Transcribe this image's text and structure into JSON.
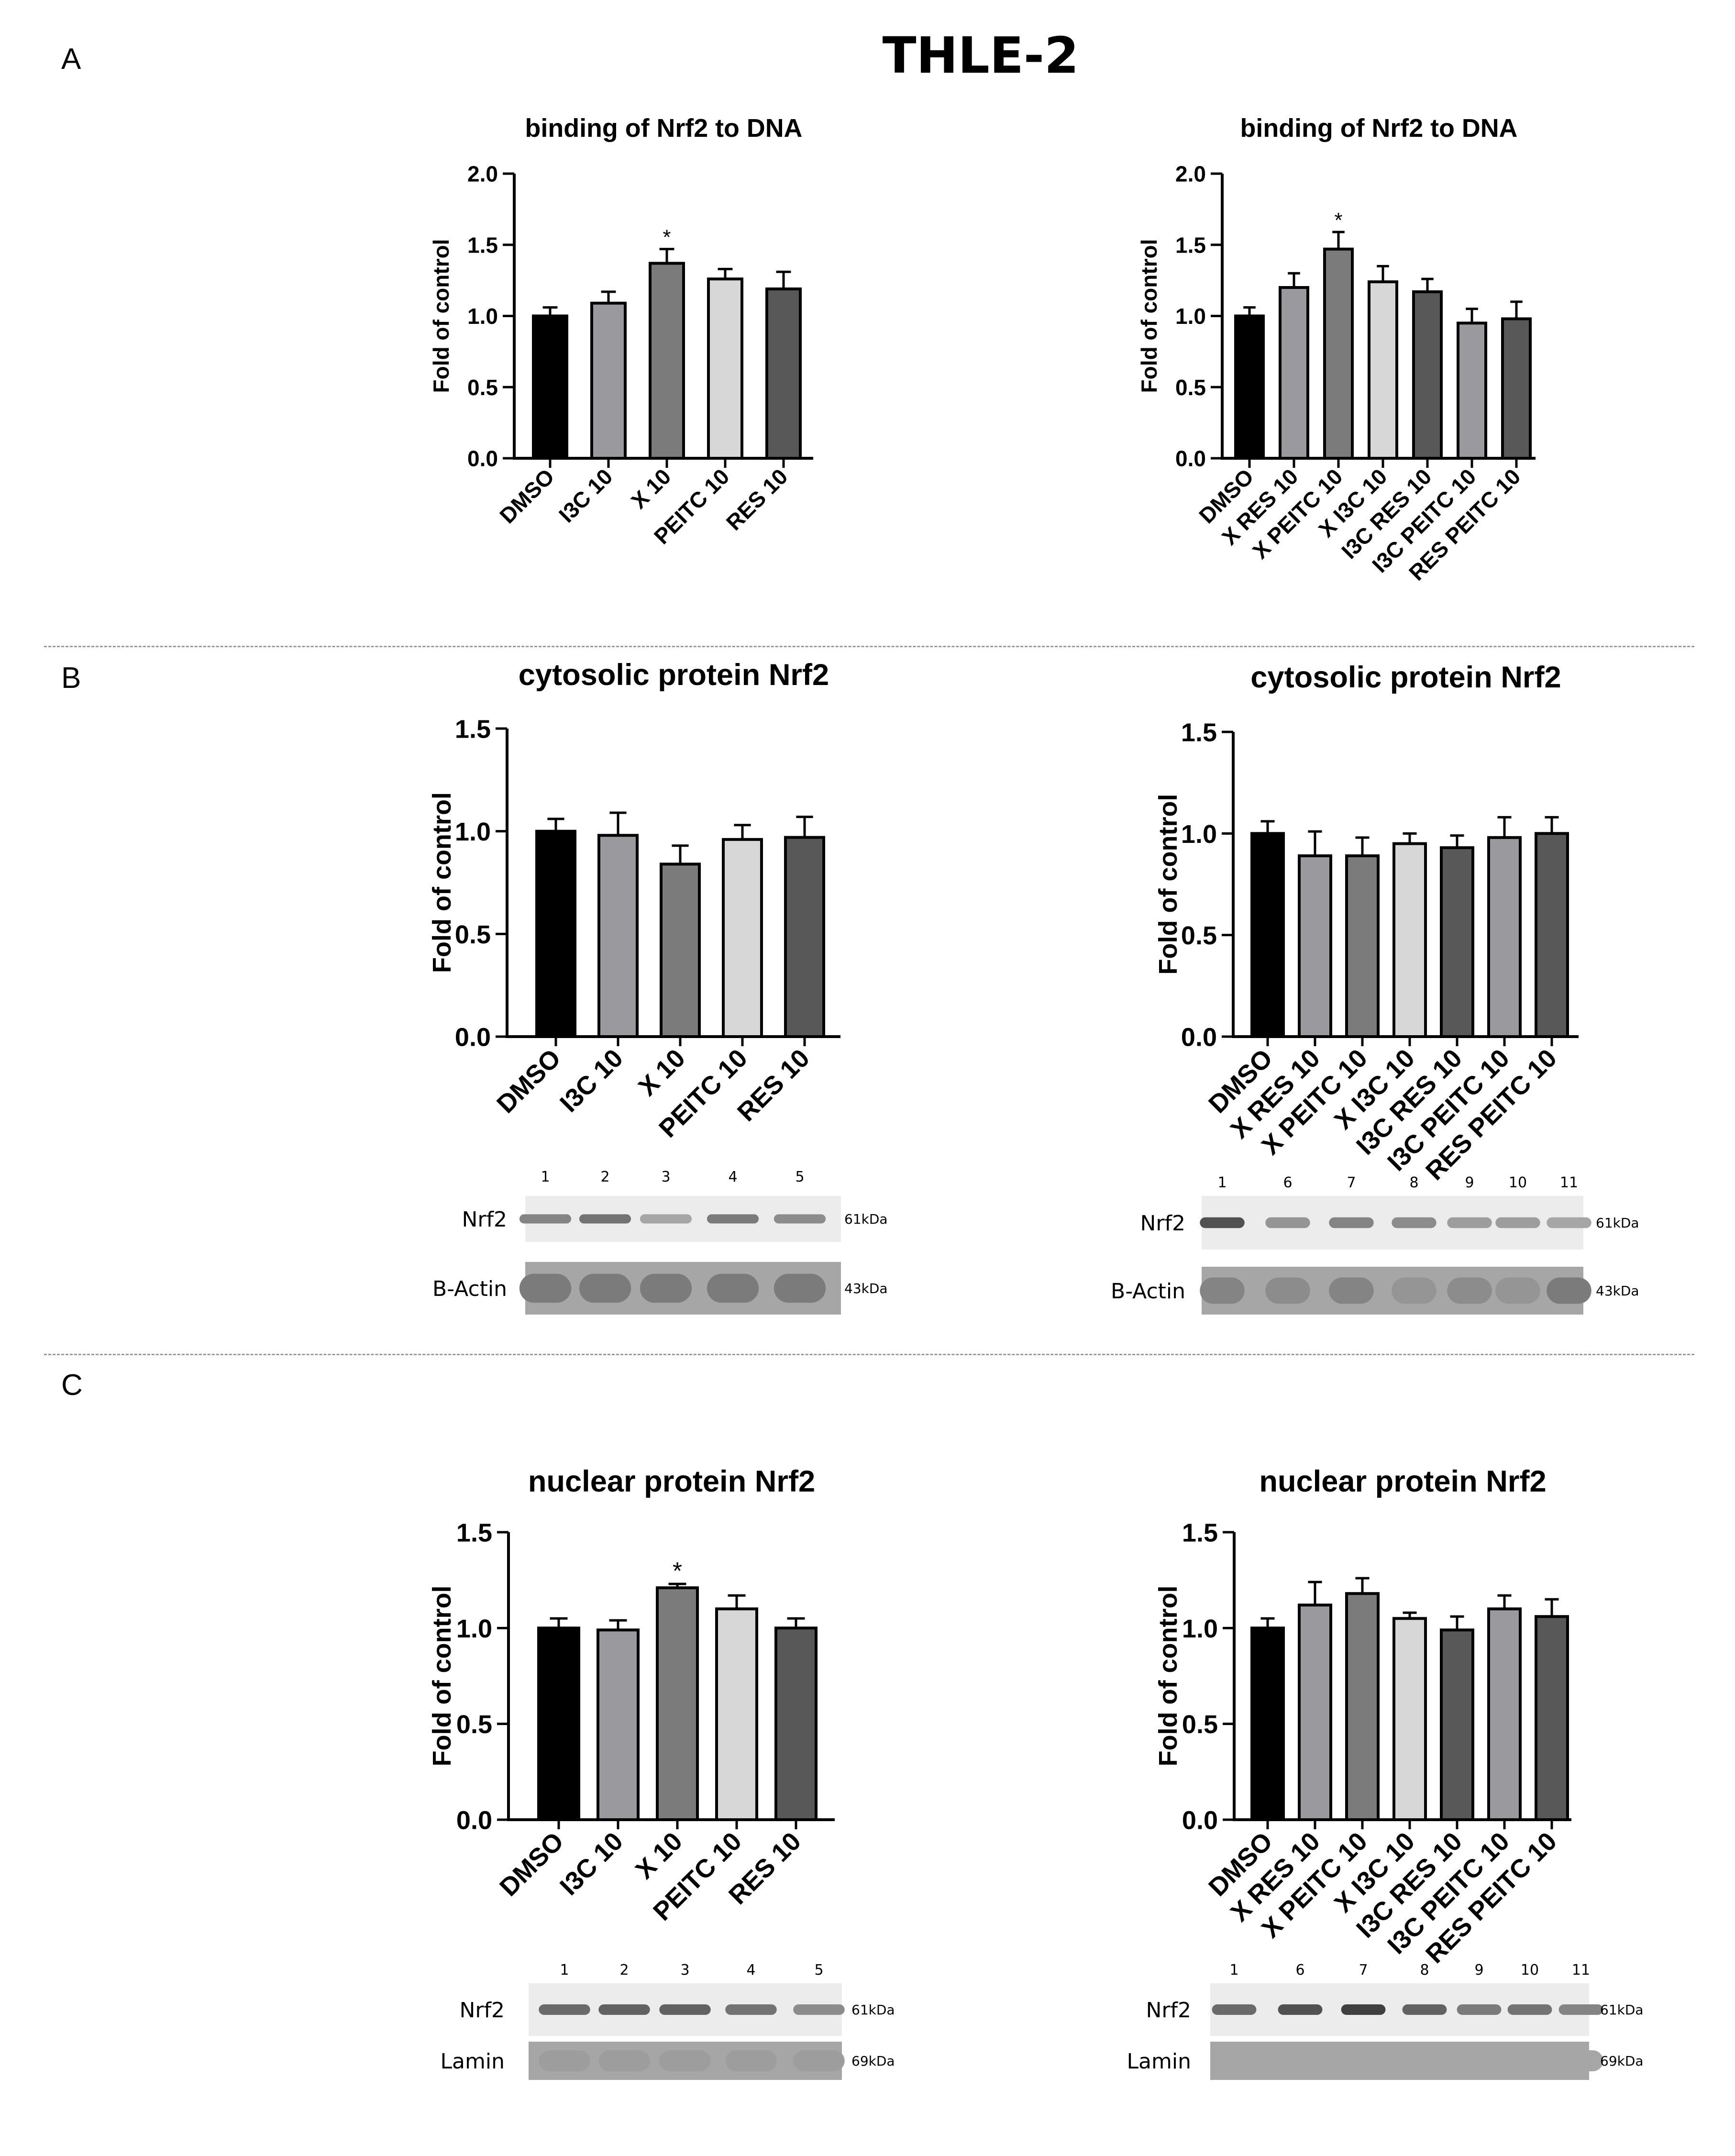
{
  "figure": {
    "title": "THLE-2",
    "panels": [
      "A",
      "B",
      "C"
    ]
  },
  "colors": {
    "DMSO": "#000000",
    "I3C 10": "#9a9a9e",
    "X 10": "#7b7b7b",
    "PEITC 10": "#d7d7d7",
    "RES 10": "#585858",
    "X RES 10": "#9a9a9e",
    "X PEITC 10": "#7b7b7b",
    "X I3C 10": "#d7d7d7",
    "I3C RES 10": "#585858",
    "I3C PEITC 10": "#9a9a9e",
    "RES PEITC 10": "#585858"
  },
  "chart_data": [
    {
      "id": "A-left",
      "type": "bar",
      "title": "binding of Nrf2 to DNA",
      "xlabel": "",
      "ylabel": "Fold of control",
      "ylim": [
        0,
        2.0
      ],
      "yticks": [
        "0.0",
        "0.5",
        "1.0",
        "1.5",
        "2.0"
      ],
      "grid": false,
      "categories": [
        "DMSO",
        "I3C 10",
        "X 10",
        "PEITC 10",
        "RES 10"
      ],
      "values": [
        1.0,
        1.09,
        1.37,
        1.26,
        1.19
      ],
      "errors": [
        0.06,
        0.08,
        0.1,
        0.07,
        0.12
      ],
      "annotations": [
        "",
        "",
        "*",
        "",
        ""
      ]
    },
    {
      "id": "A-right",
      "type": "bar",
      "title": "binding of Nrf2 to DNA",
      "xlabel": "",
      "ylabel": "Fold of control",
      "ylim": [
        0,
        2.0
      ],
      "yticks": [
        "0.0",
        "0.5",
        "1.0",
        "1.5",
        "2.0"
      ],
      "grid": false,
      "categories": [
        "DMSO",
        "X RES 10",
        "X PEITC 10",
        "X I3C 10",
        "I3C RES 10",
        "I3C PEITC 10",
        "RES PEITC 10"
      ],
      "values": [
        1.0,
        1.2,
        1.47,
        1.24,
        1.17,
        0.95,
        0.98
      ],
      "errors": [
        0.06,
        0.1,
        0.12,
        0.11,
        0.09,
        0.1,
        0.12
      ],
      "annotations": [
        "",
        "",
        "*",
        "",
        "",
        "",
        ""
      ]
    },
    {
      "id": "B-left",
      "type": "bar",
      "title": "cytosolic protein Nrf2",
      "xlabel": "",
      "ylabel": "Fold of control",
      "ylim": [
        0,
        1.5
      ],
      "yticks": [
        "0.0",
        "0.5",
        "1.0",
        "1.5"
      ],
      "grid": false,
      "categories": [
        "DMSO",
        "I3C 10",
        "X 10",
        "PEITC 10",
        "RES 10"
      ],
      "values": [
        1.0,
        0.98,
        0.84,
        0.96,
        0.97
      ],
      "errors": [
        0.06,
        0.11,
        0.09,
        0.07,
        0.1
      ],
      "annotations": [
        "",
        "",
        "",
        "",
        ""
      ]
    },
    {
      "id": "B-right",
      "type": "bar",
      "title": "cytosolic protein Nrf2",
      "xlabel": "",
      "ylabel": "Fold of control",
      "ylim": [
        0,
        1.5
      ],
      "yticks": [
        "0.0",
        "0.5",
        "1.0",
        "1.5"
      ],
      "grid": false,
      "categories": [
        "DMSO",
        "X RES 10",
        "X PEITC 10",
        "X I3C 10",
        "I3C RES 10",
        "I3C PEITC 10",
        "RES PEITC 10"
      ],
      "values": [
        1.0,
        0.89,
        0.89,
        0.95,
        0.93,
        0.98,
        1.0
      ],
      "errors": [
        0.06,
        0.12,
        0.09,
        0.05,
        0.06,
        0.1,
        0.08
      ],
      "annotations": [
        "",
        "",
        "",
        "",
        "",
        "",
        ""
      ]
    },
    {
      "id": "C-left",
      "type": "bar",
      "title": "nuclear protein Nrf2",
      "xlabel": "",
      "ylabel": "Fold of control",
      "ylim": [
        0,
        1.5
      ],
      "yticks": [
        "0.0",
        "0.5",
        "1.0",
        "1.5"
      ],
      "grid": false,
      "categories": [
        "DMSO",
        "I3C 10",
        "X 10",
        "PEITC 10",
        "RES 10"
      ],
      "values": [
        1.0,
        0.99,
        1.21,
        1.1,
        1.0
      ],
      "errors": [
        0.05,
        0.05,
        0.02,
        0.07,
        0.05
      ],
      "annotations": [
        "",
        "",
        "*",
        "",
        ""
      ]
    },
    {
      "id": "C-right",
      "type": "bar",
      "title": "nuclear protein Nrf2",
      "xlabel": "",
      "ylabel": "Fold of control",
      "ylim": [
        0,
        1.5
      ],
      "yticks": [
        "0.0",
        "0.5",
        "1.0",
        "1.5"
      ],
      "grid": false,
      "categories": [
        "DMSO",
        "X RES 10",
        "X PEITC 10",
        "X I3C 10",
        "I3C RES 10",
        "I3C PEITC 10",
        "RES PEITC 10"
      ],
      "values": [
        1.0,
        1.12,
        1.18,
        1.05,
        0.99,
        1.1,
        1.06
      ],
      "errors": [
        0.05,
        0.12,
        0.08,
        0.03,
        0.07,
        0.07,
        0.09
      ],
      "annotations": [
        "",
        "",
        "",
        "",
        "",
        "",
        ""
      ]
    }
  ],
  "blots": [
    {
      "id": "blot-B-left",
      "lane_numbers": [
        "1",
        "2",
        "3",
        "4",
        "5"
      ],
      "rows": [
        {
          "label": "Nrf2",
          "kda": "61kDa",
          "intensity": [
            0.55,
            0.65,
            0.35,
            0.6,
            0.5
          ]
        },
        {
          "label": "B-Actin",
          "kda": "43kDa",
          "intensity": [
            0.6,
            0.6,
            0.6,
            0.6,
            0.6
          ]
        }
      ]
    },
    {
      "id": "blot-B-right",
      "lane_numbers": [
        "1",
        "6",
        "7",
        "8",
        "9",
        "10",
        "11"
      ],
      "rows": [
        {
          "label": "Nrf2",
          "kda": "61kDa",
          "intensity": [
            0.85,
            0.45,
            0.55,
            0.5,
            0.4,
            0.4,
            0.35
          ]
        },
        {
          "label": "B-Actin",
          "kda": "43kDa",
          "intensity": [
            0.55,
            0.5,
            0.55,
            0.45,
            0.5,
            0.45,
            0.6
          ]
        }
      ]
    },
    {
      "id": "blot-C-left",
      "lane_numbers": [
        "1",
        "2",
        "3",
        "4",
        "5"
      ],
      "rows": [
        {
          "label": "Nrf2",
          "kda": "61kDa",
          "intensity": [
            0.7,
            0.75,
            0.75,
            0.65,
            0.5
          ]
        },
        {
          "label": "Lamin",
          "kda": "69kDa",
          "intensity": [
            0.4,
            0.4,
            0.4,
            0.4,
            0.4
          ]
        }
      ]
    },
    {
      "id": "blot-C-right",
      "lane_numbers": [
        "1",
        "6",
        "7",
        "8",
        "9",
        "10",
        "11"
      ],
      "rows": [
        {
          "label": "Nrf2",
          "kda": "61kDa",
          "intensity": [
            0.7,
            0.85,
            0.95,
            0.75,
            0.6,
            0.65,
            0.55
          ]
        },
        {
          "label": "Lamin",
          "kda": "69kDa",
          "intensity": [
            0.35,
            0.35,
            0.35,
            0.35,
            0.35,
            0.35,
            0.35
          ]
        }
      ]
    }
  ]
}
